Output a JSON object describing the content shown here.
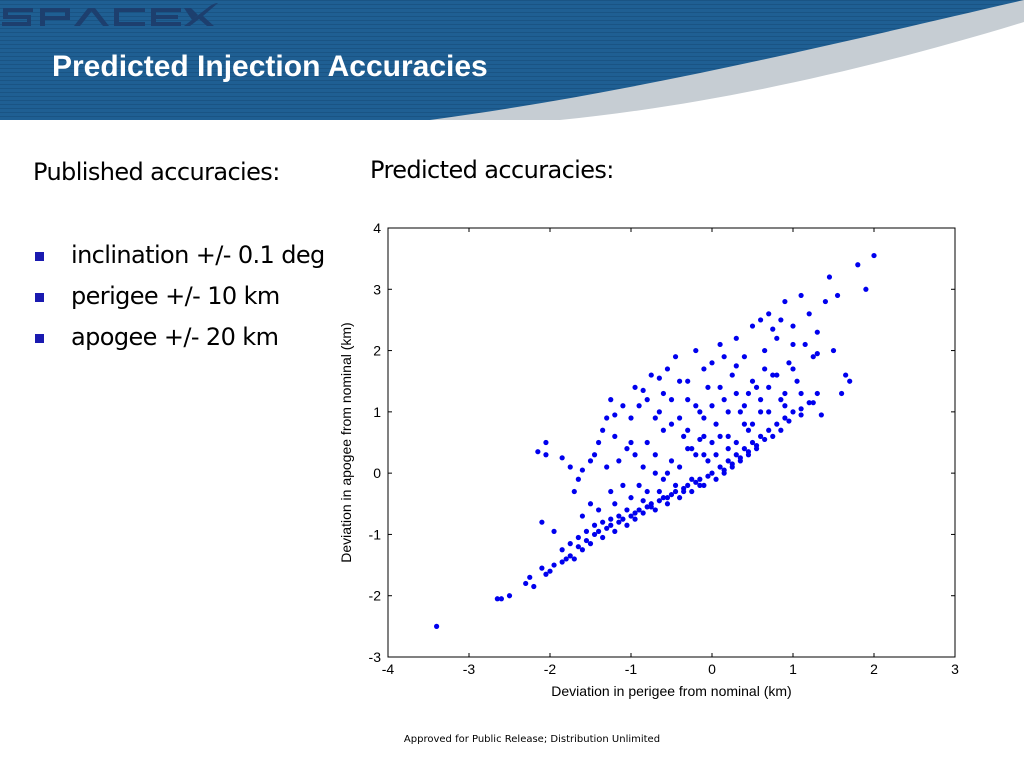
{
  "slide": {
    "title": "Predicted Injection Accuracies",
    "logo_text": "SPACEX",
    "header_colors": {
      "blue": "#1a5b8e",
      "swoosh": "#b8c2cb",
      "title_text": "#ffffff"
    },
    "bullet_color": "#1a1ab0"
  },
  "left": {
    "heading": "Published accuracies:",
    "bullets": [
      "inclination +/- 0.1 deg",
      "perigee +/- 10 km",
      "apogee +/- 20 km"
    ]
  },
  "right": {
    "heading": "Predicted accuracies:"
  },
  "footer": "Approved for Public Release; Distribution Unlimited",
  "chart_data": {
    "type": "scatter",
    "xlabel": "Deviation in perigee from nominal (km)",
    "ylabel": "Deviation in apogee from nominal (km)",
    "xlim": [
      -4,
      3
    ],
    "ylim": [
      -3,
      4
    ],
    "xticks": [
      "-4",
      "-3",
      "-2",
      "-1",
      "0",
      "1",
      "2",
      "3"
    ],
    "yticks": [
      "-3",
      "-2",
      "-1",
      "0",
      "1",
      "2",
      "3",
      "4"
    ],
    "grid": false,
    "marker_color": "#0000ee",
    "points": [
      [
        -3.4,
        -2.5
      ],
      [
        -2.65,
        -2.05
      ],
      [
        -2.6,
        -2.05
      ],
      [
        -2.5,
        -2.0
      ],
      [
        -2.3,
        -1.8
      ],
      [
        -2.25,
        -1.7
      ],
      [
        -2.2,
        -1.85
      ],
      [
        -2.1,
        -1.55
      ],
      [
        -2.05,
        -1.65
      ],
      [
        -2.0,
        -1.6
      ],
      [
        -1.95,
        -1.5
      ],
      [
        -1.85,
        -1.45
      ],
      [
        -1.8,
        -1.4
      ],
      [
        -1.75,
        -1.35
      ],
      [
        -1.7,
        -1.4
      ],
      [
        -1.65,
        -1.2
      ],
      [
        -1.6,
        -1.25
      ],
      [
        -1.55,
        -1.1
      ],
      [
        -1.5,
        -1.15
      ],
      [
        -1.45,
        -1.0
      ],
      [
        -1.4,
        -0.95
      ],
      [
        -1.35,
        -1.05
      ],
      [
        -1.3,
        -0.9
      ],
      [
        -1.25,
        -0.85
      ],
      [
        -1.2,
        -0.95
      ],
      [
        -1.15,
        -0.8
      ],
      [
        -1.1,
        -0.75
      ],
      [
        -1.05,
        -0.85
      ],
      [
        -1.0,
        -0.7
      ],
      [
        -0.95,
        -0.75
      ],
      [
        -0.9,
        -0.6
      ],
      [
        -0.85,
        -0.65
      ],
      [
        -0.8,
        -0.55
      ],
      [
        -0.75,
        -0.5
      ],
      [
        -0.7,
        -0.6
      ],
      [
        -0.65,
        -0.45
      ],
      [
        -0.6,
        -0.4
      ],
      [
        -0.55,
        -0.5
      ],
      [
        -0.5,
        -0.35
      ],
      [
        -0.45,
        -0.3
      ],
      [
        -0.4,
        -0.4
      ],
      [
        -0.35,
        -0.25
      ],
      [
        -0.3,
        -0.2
      ],
      [
        -0.25,
        -0.3
      ],
      [
        -0.2,
        -0.15
      ],
      [
        -0.15,
        -0.1
      ],
      [
        -0.1,
        -0.2
      ],
      [
        -0.05,
        -0.05
      ],
      [
        0.0,
        0.0
      ],
      [
        0.05,
        -0.1
      ],
      [
        0.1,
        0.1
      ],
      [
        0.15,
        0.05
      ],
      [
        0.2,
        0.2
      ],
      [
        0.25,
        0.15
      ],
      [
        0.3,
        0.3
      ],
      [
        0.35,
        0.25
      ],
      [
        0.4,
        0.4
      ],
      [
        0.45,
        0.35
      ],
      [
        0.5,
        0.5
      ],
      [
        0.55,
        0.45
      ],
      [
        0.6,
        0.6
      ],
      [
        0.7,
        0.7
      ],
      [
        0.8,
        0.8
      ],
      [
        0.9,
        0.9
      ],
      [
        1.0,
        1.0
      ],
      [
        1.1,
        1.05
      ],
      [
        1.2,
        1.15
      ],
      [
        1.3,
        1.3
      ],
      [
        -2.1,
        -0.8
      ],
      [
        -2.05,
        0.3
      ],
      [
        -2.15,
        0.35
      ],
      [
        -2.05,
        0.5
      ],
      [
        -1.75,
        0.1
      ],
      [
        -1.65,
        -0.1
      ],
      [
        -1.5,
        -0.5
      ],
      [
        -1.45,
        0.3
      ],
      [
        -1.4,
        0.5
      ],
      [
        -1.35,
        0.7
      ],
      [
        -1.3,
        0.9
      ],
      [
        -1.25,
        1.2
      ],
      [
        -1.2,
        0.6
      ],
      [
        -1.15,
        0.2
      ],
      [
        -1.1,
        -0.2
      ],
      [
        -1.05,
        0.4
      ],
      [
        -1.0,
        0.9
      ],
      [
        -0.95,
        1.4
      ],
      [
        -0.9,
        1.1
      ],
      [
        -0.85,
        0.1
      ],
      [
        -0.8,
        0.5
      ],
      [
        -0.75,
        1.6
      ],
      [
        -0.7,
        0.3
      ],
      [
        -0.65,
        1.0
      ],
      [
        -0.6,
        1.3
      ],
      [
        -0.55,
        0.0
      ],
      [
        -0.5,
        0.8
      ],
      [
        -0.45,
        1.9
      ],
      [
        -0.4,
        1.5
      ],
      [
        -0.35,
        0.6
      ],
      [
        -0.3,
        1.2
      ],
      [
        -0.25,
        0.4
      ],
      [
        -0.2,
        2.0
      ],
      [
        -0.15,
        1.0
      ],
      [
        -0.1,
        0.6
      ],
      [
        -0.05,
        1.4
      ],
      [
        0.0,
        1.8
      ],
      [
        0.05,
        0.8
      ],
      [
        0.1,
        2.1
      ],
      [
        0.15,
        1.2
      ],
      [
        0.2,
        0.6
      ],
      [
        0.25,
        1.6
      ],
      [
        0.3,
        2.2
      ],
      [
        0.35,
        1.0
      ],
      [
        0.4,
        1.9
      ],
      [
        0.45,
        0.7
      ],
      [
        0.5,
        2.4
      ],
      [
        0.55,
        1.4
      ],
      [
        0.6,
        1.0
      ],
      [
        0.65,
        2.0
      ],
      [
        0.7,
        2.6
      ],
      [
        0.75,
        1.6
      ],
      [
        0.8,
        2.2
      ],
      [
        0.85,
        1.2
      ],
      [
        0.9,
        2.8
      ],
      [
        0.95,
        1.8
      ],
      [
        1.0,
        2.4
      ],
      [
        1.05,
        1.5
      ],
      [
        1.1,
        2.9
      ],
      [
        1.15,
        2.1
      ],
      [
        1.2,
        2.6
      ],
      [
        1.25,
        1.9
      ],
      [
        1.3,
        2.3
      ],
      [
        1.4,
        2.8
      ],
      [
        1.45,
        3.2
      ],
      [
        1.5,
        2.0
      ],
      [
        1.55,
        2.9
      ],
      [
        1.6,
        1.3
      ],
      [
        1.65,
        1.6
      ],
      [
        1.7,
        1.5
      ],
      [
        1.8,
        3.4
      ],
      [
        1.9,
        3.0
      ],
      [
        2.0,
        3.55
      ],
      [
        1.35,
        0.95
      ],
      [
        1.3,
        1.95
      ],
      [
        1.1,
        0.95
      ],
      [
        0.95,
        0.85
      ],
      [
        0.85,
        0.7
      ],
      [
        0.75,
        0.6
      ],
      [
        0.65,
        0.55
      ],
      [
        0.55,
        0.4
      ],
      [
        0.45,
        0.3
      ],
      [
        0.35,
        0.2
      ],
      [
        0.25,
        0.1
      ],
      [
        0.15,
        0.0
      ],
      [
        0.05,
        0.3
      ],
      [
        -0.05,
        0.2
      ],
      [
        -0.15,
        -0.2
      ],
      [
        -0.25,
        -0.1
      ],
      [
        -0.35,
        -0.3
      ],
      [
        -0.45,
        -0.2
      ],
      [
        -0.55,
        -0.4
      ],
      [
        -0.65,
        -0.3
      ],
      [
        -0.75,
        -0.55
      ],
      [
        -0.85,
        -0.45
      ],
      [
        -0.95,
        -0.65
      ],
      [
        -1.05,
        -0.6
      ],
      [
        -1.15,
        -0.7
      ],
      [
        -1.25,
        -0.75
      ],
      [
        -1.35,
        -0.8
      ],
      [
        -1.45,
        -0.85
      ],
      [
        -1.55,
        -0.95
      ],
      [
        -1.65,
        -1.05
      ],
      [
        -1.75,
        -1.15
      ],
      [
        -1.85,
        -1.25
      ],
      [
        -1.95,
        -0.95
      ],
      [
        -1.85,
        0.25
      ],
      [
        -1.6,
        0.05
      ],
      [
        -1.2,
        0.95
      ],
      [
        -1.0,
        0.5
      ],
      [
        -0.8,
        1.2
      ],
      [
        -0.7,
        0.9
      ],
      [
        -0.6,
        0.7
      ],
      [
        -0.5,
        1.2
      ],
      [
        -0.4,
        0.9
      ],
      [
        -0.3,
        0.7
      ],
      [
        -0.2,
        1.1
      ],
      [
        -0.1,
        0.9
      ],
      [
        0.0,
        1.1
      ],
      [
        0.1,
        1.4
      ],
      [
        0.2,
        1.0
      ],
      [
        0.3,
        1.3
      ],
      [
        0.4,
        1.1
      ],
      [
        0.5,
        1.5
      ],
      [
        0.6,
        1.2
      ],
      [
        0.7,
        1.4
      ],
      [
        0.8,
        1.6
      ],
      [
        0.9,
        1.3
      ],
      [
        1.0,
        1.7
      ],
      [
        0.4,
        0.8
      ],
      [
        0.2,
        0.4
      ],
      [
        0.0,
        0.5
      ],
      [
        -0.2,
        0.3
      ],
      [
        -0.4,
        0.1
      ],
      [
        -0.6,
        -0.1
      ],
      [
        -0.8,
        -0.3
      ],
      [
        -1.0,
        -0.4
      ],
      [
        -1.2,
        -0.5
      ],
      [
        -1.4,
        -0.6
      ],
      [
        -1.6,
        -0.7
      ],
      [
        -0.9,
        -0.2
      ],
      [
        -0.7,
        0.0
      ],
      [
        -0.5,
        0.2
      ],
      [
        -0.3,
        0.4
      ],
      [
        -0.1,
        0.3
      ],
      [
        0.1,
        0.6
      ],
      [
        0.3,
        0.5
      ],
      [
        0.5,
        0.8
      ],
      [
        0.7,
        1.0
      ],
      [
        0.9,
        1.1
      ],
      [
        1.1,
        1.3
      ],
      [
        1.25,
        1.15
      ],
      [
        0.75,
        2.35
      ],
      [
        0.6,
        2.5
      ],
      [
        0.3,
        1.75
      ],
      [
        0.85,
        2.5
      ],
      [
        -0.55,
        1.7
      ],
      [
        -0.85,
        1.35
      ],
      [
        -1.1,
        1.1
      ],
      [
        -0.3,
        1.5
      ],
      [
        -0.1,
        1.7
      ],
      [
        0.15,
        1.9
      ],
      [
        -0.65,
        1.55
      ],
      [
        -0.95,
        0.3
      ],
      [
        -1.3,
        0.1
      ],
      [
        -1.5,
        0.2
      ],
      [
        -1.7,
        -0.3
      ],
      [
        -1.25,
        -0.3
      ],
      [
        -0.15,
        0.55
      ],
      [
        0.45,
        1.3
      ],
      [
        0.65,
        1.7
      ],
      [
        1.0,
        2.1
      ]
    ]
  }
}
